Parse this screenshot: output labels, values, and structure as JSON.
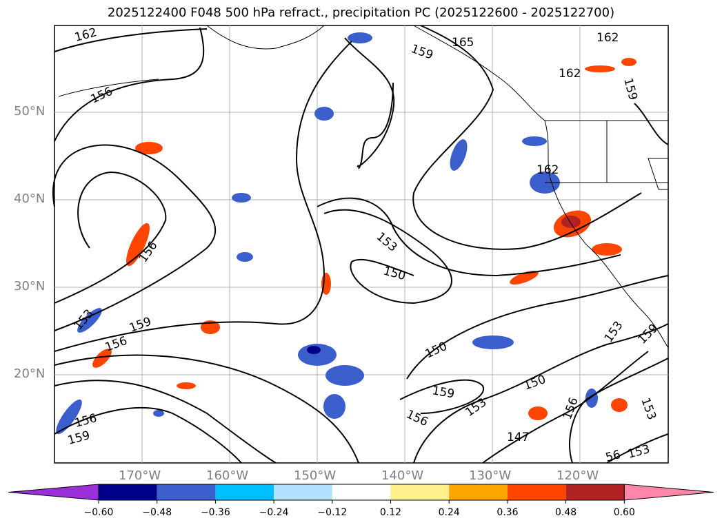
{
  "title": "2025122400 F048 500 hPa refract., precipitation PC (2025122600 - 2025122700)",
  "lat_labels": [
    "50°N",
    "40°N",
    "30°N",
    "20°N"
  ],
  "lon_labels": [
    "170°W",
    "160°W",
    "150°W",
    "140°W",
    "130°W",
    "120°W"
  ],
  "contour_labels": [
    "162",
    "165",
    "159",
    "162",
    "159",
    "156",
    "162",
    "156",
    "153",
    "150",
    "153",
    "159",
    "156",
    "150",
    "159",
    "153",
    "156",
    "150",
    "147",
    "156",
    "153",
    "153",
    "159",
    "156",
    "159",
    "162",
    "56",
    "153"
  ],
  "colorbar": {
    "ticks": [
      "−0.60",
      "−0.48",
      "−0.36",
      "−0.24",
      "−0.12",
      "0.12",
      "0.24",
      "0.36",
      "0.48",
      "0.60"
    ],
    "colors": [
      "#9b30d9",
      "#00008b",
      "#3a5fcd",
      "#00bfff",
      "#b0e2ff",
      "#ffffff",
      "#fff08c",
      "#ffa500",
      "#ff4500",
      "#b22222",
      "#ff88aa"
    ]
  }
}
